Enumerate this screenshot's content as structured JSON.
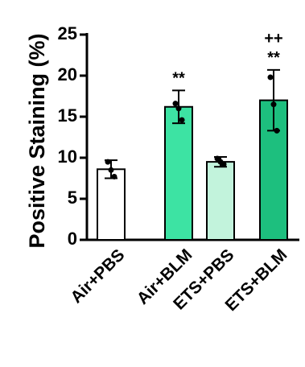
{
  "chart_data": {
    "type": "bar",
    "y_label": "Positive Staining (%)",
    "categories": [
      "Air+PBS",
      "Air+BLM",
      "ETS+PBS",
      "ETS+BLM"
    ],
    "values": [
      8.6,
      16.2,
      9.5,
      17.0
    ],
    "errors": [
      1.1,
      2.0,
      0.6,
      3.7
    ],
    "points": [
      [
        9.5,
        8.5,
        7.7
      ],
      [
        16.6,
        16.0,
        14.6
      ],
      [
        9.9,
        9.5,
        9.2
      ],
      [
        19.8,
        16.5,
        13.3
      ]
    ],
    "colors": [
      "#ffffff",
      "#3de3a3",
      "#c2f3dc",
      "#1dbf7e"
    ],
    "annotations": [
      null,
      [
        "**"
      ],
      null,
      [
        "++",
        "**"
      ]
    ],
    "ylim": [
      0,
      25
    ],
    "yticks": [
      0,
      5,
      10,
      15,
      20,
      25
    ]
  }
}
